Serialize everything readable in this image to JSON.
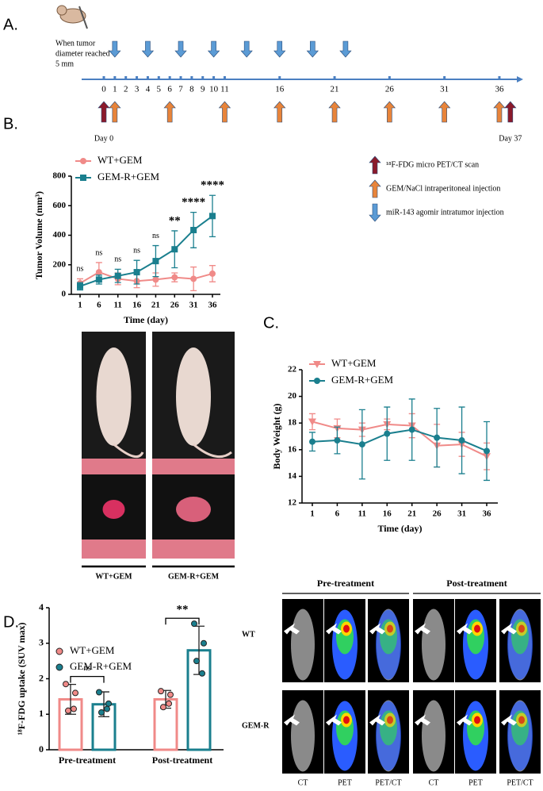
{
  "panel_labels": [
    "A.",
    "B.",
    "C.",
    "D."
  ],
  "timeline": {
    "note": [
      "When tumor",
      "diameter reached",
      "5 mm"
    ],
    "days": [
      0,
      1,
      2,
      3,
      4,
      5,
      6,
      7,
      8,
      9,
      10,
      11,
      16,
      21,
      26,
      31,
      36
    ],
    "start_label": "Day 0",
    "end_label": "Day 37",
    "arrows": [
      {
        "label": "¹⁸F-FDG micro PET/CT scan",
        "color": "#8b1a2b",
        "direction": "up",
        "days": [
          0,
          37
        ]
      },
      {
        "label": "GEM/NaCl intraperitoneal injection",
        "color": "#e8843a",
        "direction": "up",
        "days": [
          1,
          6,
          11,
          16,
          21,
          26,
          31,
          36
        ]
      },
      {
        "label": "miR-143 agomir intratumor injection",
        "color": "#5b9bd5",
        "direction": "down",
        "days": [
          1,
          4,
          7,
          10,
          13,
          16,
          19,
          22
        ]
      }
    ]
  },
  "chart_data": [
    {
      "type": "line",
      "ylabel": "Tumor Volume (mm³)",
      "xlabel": "Time (day)",
      "x": [
        1,
        6,
        11,
        16,
        21,
        26,
        31,
        36
      ],
      "xlim": [
        1,
        36
      ],
      "xticks": [
        1,
        6,
        11,
        16,
        21,
        26,
        31,
        36
      ],
      "ylim": [
        0,
        800
      ],
      "yticks": [
        0,
        200,
        400,
        600,
        800
      ],
      "series": [
        {
          "name": "WT+GEM",
          "color": "#f08a88",
          "marker": "circle",
          "values": [
            75,
            150,
            105,
            90,
            100,
            115,
            105,
            140
          ],
          "errors": [
            30,
            65,
            40,
            45,
            45,
            30,
            80,
            55
          ]
        },
        {
          "name": "GEM-R+GEM",
          "color": "#1a7f8e",
          "marker": "square",
          "values": [
            55,
            100,
            125,
            150,
            225,
            305,
            435,
            530
          ],
          "errors": [
            25,
            30,
            45,
            80,
            105,
            125,
            120,
            140
          ]
        }
      ],
      "annotations": [
        "ns",
        "ns",
        "ns",
        "ns",
        "ns",
        "**",
        "****",
        "****"
      ]
    },
    {
      "type": "line",
      "ylabel": "Body  Weight (g)",
      "xlabel": "Time (day)",
      "x": [
        1,
        6,
        11,
        16,
        21,
        26,
        31,
        36
      ],
      "xlim": [
        1,
        36
      ],
      "xticks": [
        1,
        6,
        11,
        16,
        21,
        26,
        31,
        36
      ],
      "ylim": [
        12,
        22
      ],
      "yticks": [
        12,
        14,
        16,
        18,
        20,
        22
      ],
      "series": [
        {
          "name": "WT+GEM",
          "color": "#f08a88",
          "marker": "triangle-down",
          "values": [
            18.1,
            17.6,
            17.5,
            17.9,
            17.8,
            16.3,
            16.4,
            15.5
          ],
          "errors": [
            0.6,
            0.7,
            0.5,
            0.4,
            0.9,
            1.6,
            0.9,
            1.0
          ]
        },
        {
          "name": "GEM-R+GEM",
          "color": "#1a7f8e",
          "marker": "circle",
          "values": [
            16.6,
            16.7,
            16.4,
            17.2,
            17.5,
            16.9,
            16.7,
            15.9
          ],
          "errors": [
            0.7,
            1.0,
            2.6,
            2.0,
            2.3,
            2.2,
            2.5,
            2.2
          ]
        }
      ]
    },
    {
      "type": "bar",
      "ylabel": "¹⁸F-FDG uptake (SUV max)",
      "categories": [
        "Pre-treatment",
        "Post-treatment"
      ],
      "ylim": [
        0,
        4
      ],
      "yticks": [
        0,
        1,
        2,
        3,
        4
      ],
      "series": [
        {
          "name": "WT+GEM",
          "color": "#f08a88",
          "values": [
            1.42,
            1.42
          ],
          "errors": [
            0.42,
            0.25
          ],
          "points": [
            [
              1.85,
              1.6,
              1.1,
              1.15
            ],
            [
              1.65,
              1.55,
              1.2,
              1.3
            ]
          ]
        },
        {
          "name": "GEM-R+GEM",
          "color": "#1a7f8e",
          "values": [
            1.28,
            2.8
          ],
          "errors": [
            0.35,
            0.68
          ],
          "points": [
            [
              1.62,
              1.3,
              1.05,
              1.15
            ],
            [
              3.55,
              3.0,
              2.5,
              2.15
            ]
          ]
        }
      ],
      "significance": [
        "ns",
        "**"
      ]
    }
  ],
  "photos": {
    "labels": [
      "WT+GEM",
      "GEM-R+GEM"
    ]
  },
  "pet_ct": {
    "groups": [
      "Pre-treatment",
      "Post-treatment"
    ],
    "rows": [
      "WT",
      "GEM-R"
    ],
    "columns": [
      "CT",
      "PET",
      "PET/CT",
      "CT",
      "PET",
      "PET/CT"
    ]
  }
}
